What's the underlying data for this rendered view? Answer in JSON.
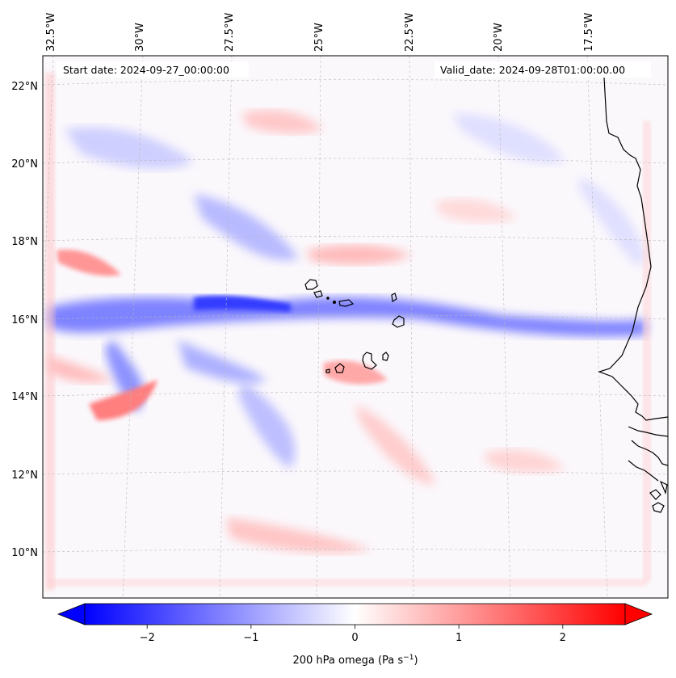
{
  "map": {
    "start_date": "Start date: 2024-09-27_00:00:00",
    "valid_date": "Valid_date: 2024-09-28T01:00:00.00",
    "lon_labels": [
      "32.5°W",
      "30°W",
      "27.5°W",
      "25°W",
      "22.5°W",
      "20°W",
      "17.5°W"
    ],
    "lat_labels": [
      "22°N",
      "20°N",
      "18°N",
      "16°N",
      "14°N",
      "12°N",
      "10°N"
    ],
    "colors": {
      "negative_max": "#0000ff",
      "neutral": "#ffffff",
      "positive_max": "#ff0000",
      "coastline": "#000000",
      "gridline": "#b0b0b0"
    }
  },
  "colorbar": {
    "tick_values": [
      -2,
      -1,
      0,
      1,
      2
    ],
    "tick_labels": [
      "−2",
      "−1",
      "0",
      "1",
      "2"
    ],
    "range": [
      -2.6,
      2.6
    ],
    "label_prefix": "200 hPa omega (Pa s",
    "label_exp": "−1",
    "label_suffix": ")"
  }
}
